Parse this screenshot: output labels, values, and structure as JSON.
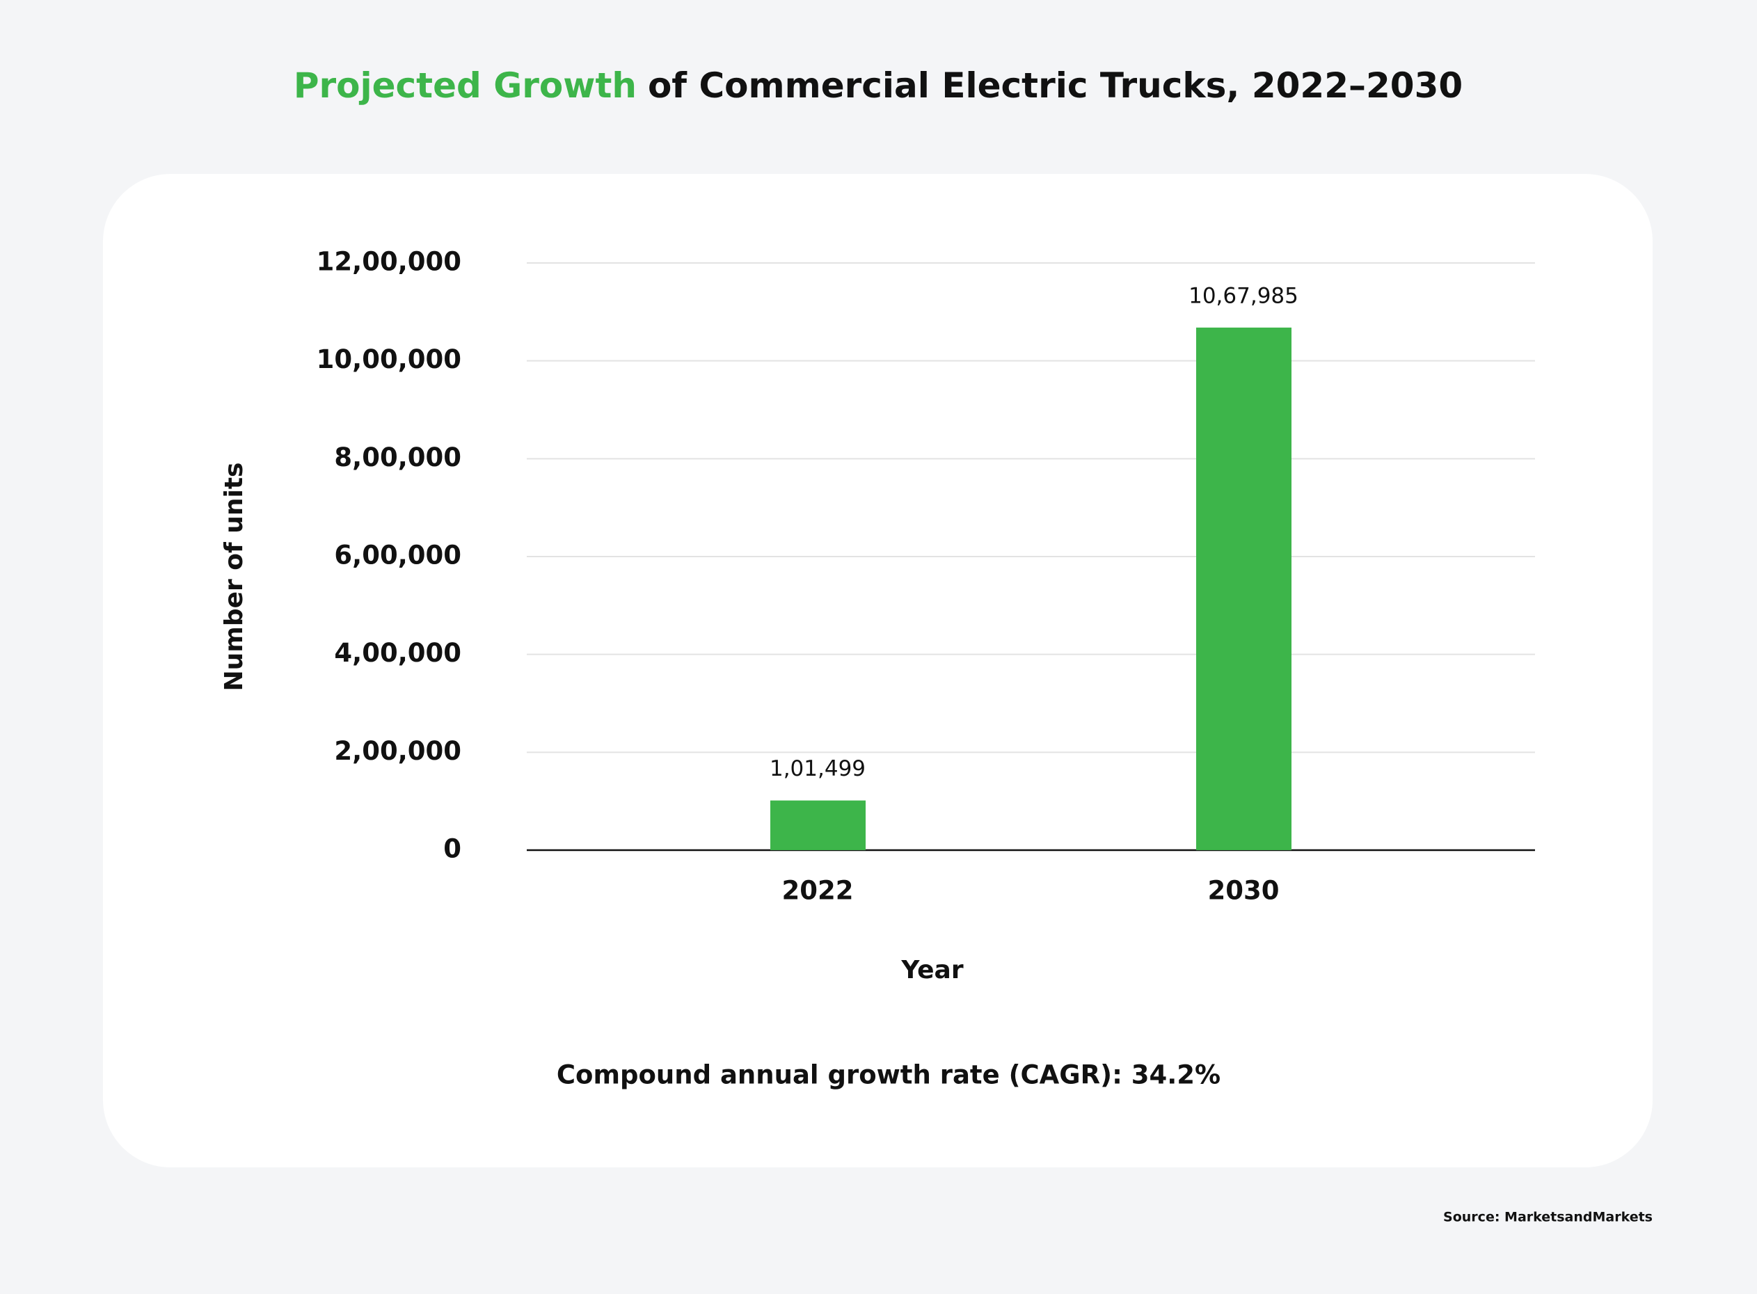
{
  "chart_data": {
    "type": "bar",
    "title_highlight": "Projected Growth",
    "title_rest": "of Commercial Electric Trucks, 2022–2030",
    "title_highlight_color": "#3db54a",
    "ylabel": "Number of units",
    "xlabel": "Year",
    "categories": [
      "2022",
      "2030"
    ],
    "values": [
      101499,
      1067985
    ],
    "value_labels": [
      "1,01,499",
      "10,67,985"
    ],
    "color": "#3db54a",
    "ylim": [
      0,
      1200000
    ],
    "yticks": [
      0,
      {
        "value": 200000,
        "label": "2,00,000"
      },
      {
        "value": 400000,
        "label": "4,00,000"
      },
      {
        "value": 600000,
        "label": "6,00,000"
      },
      {
        "value": 800000,
        "label": "8,00,000"
      },
      {
        "value": 1000000,
        "label": "10,00,000"
      },
      {
        "value": 1200000,
        "label": "12,00,000"
      }
    ],
    "grid": true,
    "note": "Compound annual growth rate (CAGR): 34.2%",
    "source": "Source: MarketsandMarkets"
  }
}
